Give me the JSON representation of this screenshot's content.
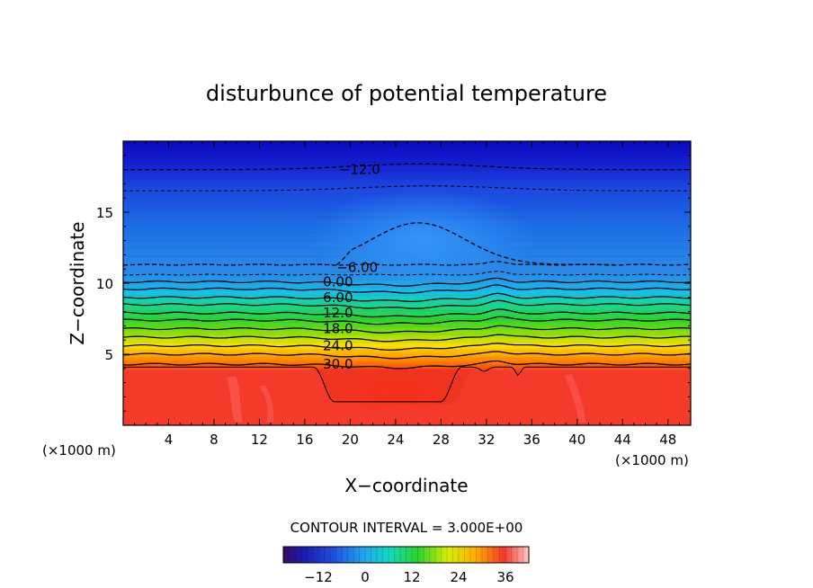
{
  "chart_data": {
    "type": "heatmap",
    "title": "disturbunce of potential temperature",
    "xlabel": "X−coordinate",
    "ylabel": "Z−coordinate",
    "x_unit_left": "(×1000 m)",
    "x_unit_right": "(×1000 m)",
    "x_range": [
      0,
      50
    ],
    "y_range": [
      0,
      20
    ],
    "x_ticks": [
      4,
      8,
      12,
      16,
      20,
      24,
      28,
      32,
      36,
      40,
      44,
      48
    ],
    "x_tick_labels": [
      "4",
      "8",
      "12",
      "16",
      "20",
      "24",
      "28",
      "32",
      "36",
      "40",
      "44",
      "48"
    ],
    "y_ticks": [
      5,
      10,
      15
    ],
    "y_tick_labels": [
      "5",
      "10",
      "15"
    ],
    "contour_interval_text": "CONTOUR INTERVAL = 3.000E+00",
    "contour_interval": 3,
    "contour_labels": [
      {
        "text": "−12.0",
        "value": -12,
        "x": 19.0,
        "y": 18.0
      },
      {
        "text": "−6.00",
        "value": -6,
        "x": 18.8,
        "y": 11.1
      },
      {
        "text": "0.00",
        "value": 0,
        "x": 17.6,
        "y": 10.1
      },
      {
        "text": "6.00",
        "value": 6,
        "x": 17.6,
        "y": 9.0
      },
      {
        "text": "12.0",
        "value": 12,
        "x": 17.6,
        "y": 7.9
      },
      {
        "text": "18.0",
        "value": 18,
        "x": 17.6,
        "y": 6.8
      },
      {
        "text": "24.0",
        "value": 24,
        "x": 17.6,
        "y": 5.6
      },
      {
        "text": "30.0",
        "value": 30,
        "x": 17.6,
        "y": 4.3
      }
    ],
    "colorbar": {
      "min": -21,
      "max": 42,
      "tick_values": [
        -12,
        0,
        12,
        24,
        36
      ],
      "tick_labels": [
        "−12",
        "0",
        "12",
        "24",
        "36"
      ]
    },
    "colors": {
      "cold": "#0a0fd0",
      "mid": "#12d9b3",
      "warm": "#f23b2b",
      "contour": "#000000"
    }
  }
}
